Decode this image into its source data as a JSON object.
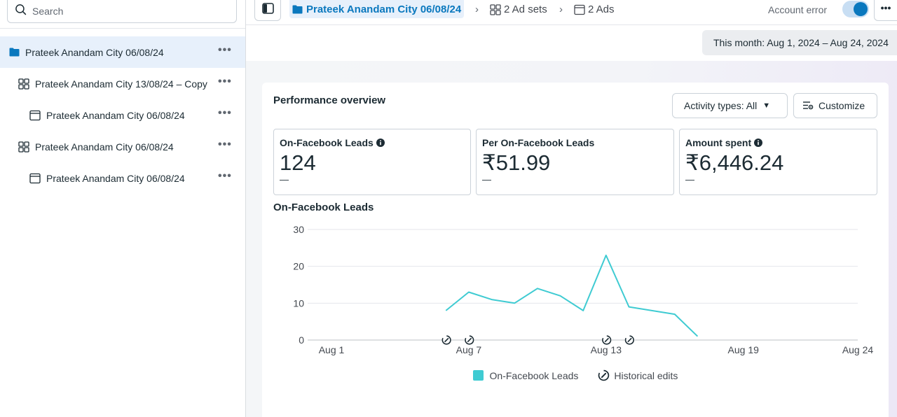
{
  "sidebar": {
    "search_placeholder": "Search",
    "items": [
      {
        "label": "Prateek Anandam City 06/08/24",
        "type": "campaign"
      },
      {
        "label": "Prateek Anandam City 13/08/24 – Copy",
        "type": "adset"
      },
      {
        "label": "Prateek Anandam City 06/08/24",
        "type": "ad"
      },
      {
        "label": "Prateek Anandam City 06/08/24",
        "type": "adset"
      },
      {
        "label": "Prateek Anandam City 06/08/24",
        "type": "ad"
      }
    ],
    "more_label": "•••"
  },
  "topbar": {
    "campaign_crumb": "Prateek Anandam City 06/08/24",
    "adsets_crumb": "2 Ad sets",
    "ads_crumb": "2 Ads",
    "sep": "›",
    "account_error": "Account error",
    "toggle_on": true,
    "more_label": "•••"
  },
  "date_range": "This month: Aug 1, 2024 – Aug 24, 2024",
  "performance": {
    "title": "Performance overview",
    "activity_types": "Activity types: All",
    "customize": "Customize",
    "metrics": [
      {
        "label": "On-Facebook Leads",
        "value": "124",
        "sub": "—",
        "info": true
      },
      {
        "label": "Per On-Facebook Leads",
        "value": "₹51.99",
        "sub": "—",
        "info": false
      },
      {
        "label": "Amount spent",
        "value": "₹6,446.24",
        "sub": "—",
        "info": true
      }
    ]
  },
  "colors": {
    "accent": "#0a78be",
    "series": "#3fcbd2"
  },
  "chart_data": {
    "type": "line",
    "title": "On-Facebook Leads",
    "x_domain": [
      1,
      24
    ],
    "x_ticks": [
      {
        "day": 1,
        "label": "Aug 1"
      },
      {
        "day": 7,
        "label": "Aug 7"
      },
      {
        "day": 13,
        "label": "Aug 13"
      },
      {
        "day": 19,
        "label": "Aug 19"
      },
      {
        "day": 24,
        "label": "Aug 24"
      }
    ],
    "y_ticks": [
      0,
      10,
      20,
      30
    ],
    "ylim": [
      0,
      30
    ],
    "series": [
      {
        "name": "On-Facebook Leads",
        "x": [
          6,
          7,
          8,
          9,
          10,
          11,
          12,
          13,
          14,
          15,
          16,
          17
        ],
        "values": [
          8,
          13,
          11,
          10,
          14,
          12,
          8,
          23,
          9,
          8,
          7,
          1
        ]
      }
    ],
    "historical_edits_days": [
      6,
      7,
      13,
      14
    ],
    "legend": [
      {
        "label": "On-Facebook Leads",
        "kind": "swatch"
      },
      {
        "label": "Historical edits",
        "kind": "edit-icon"
      }
    ]
  }
}
